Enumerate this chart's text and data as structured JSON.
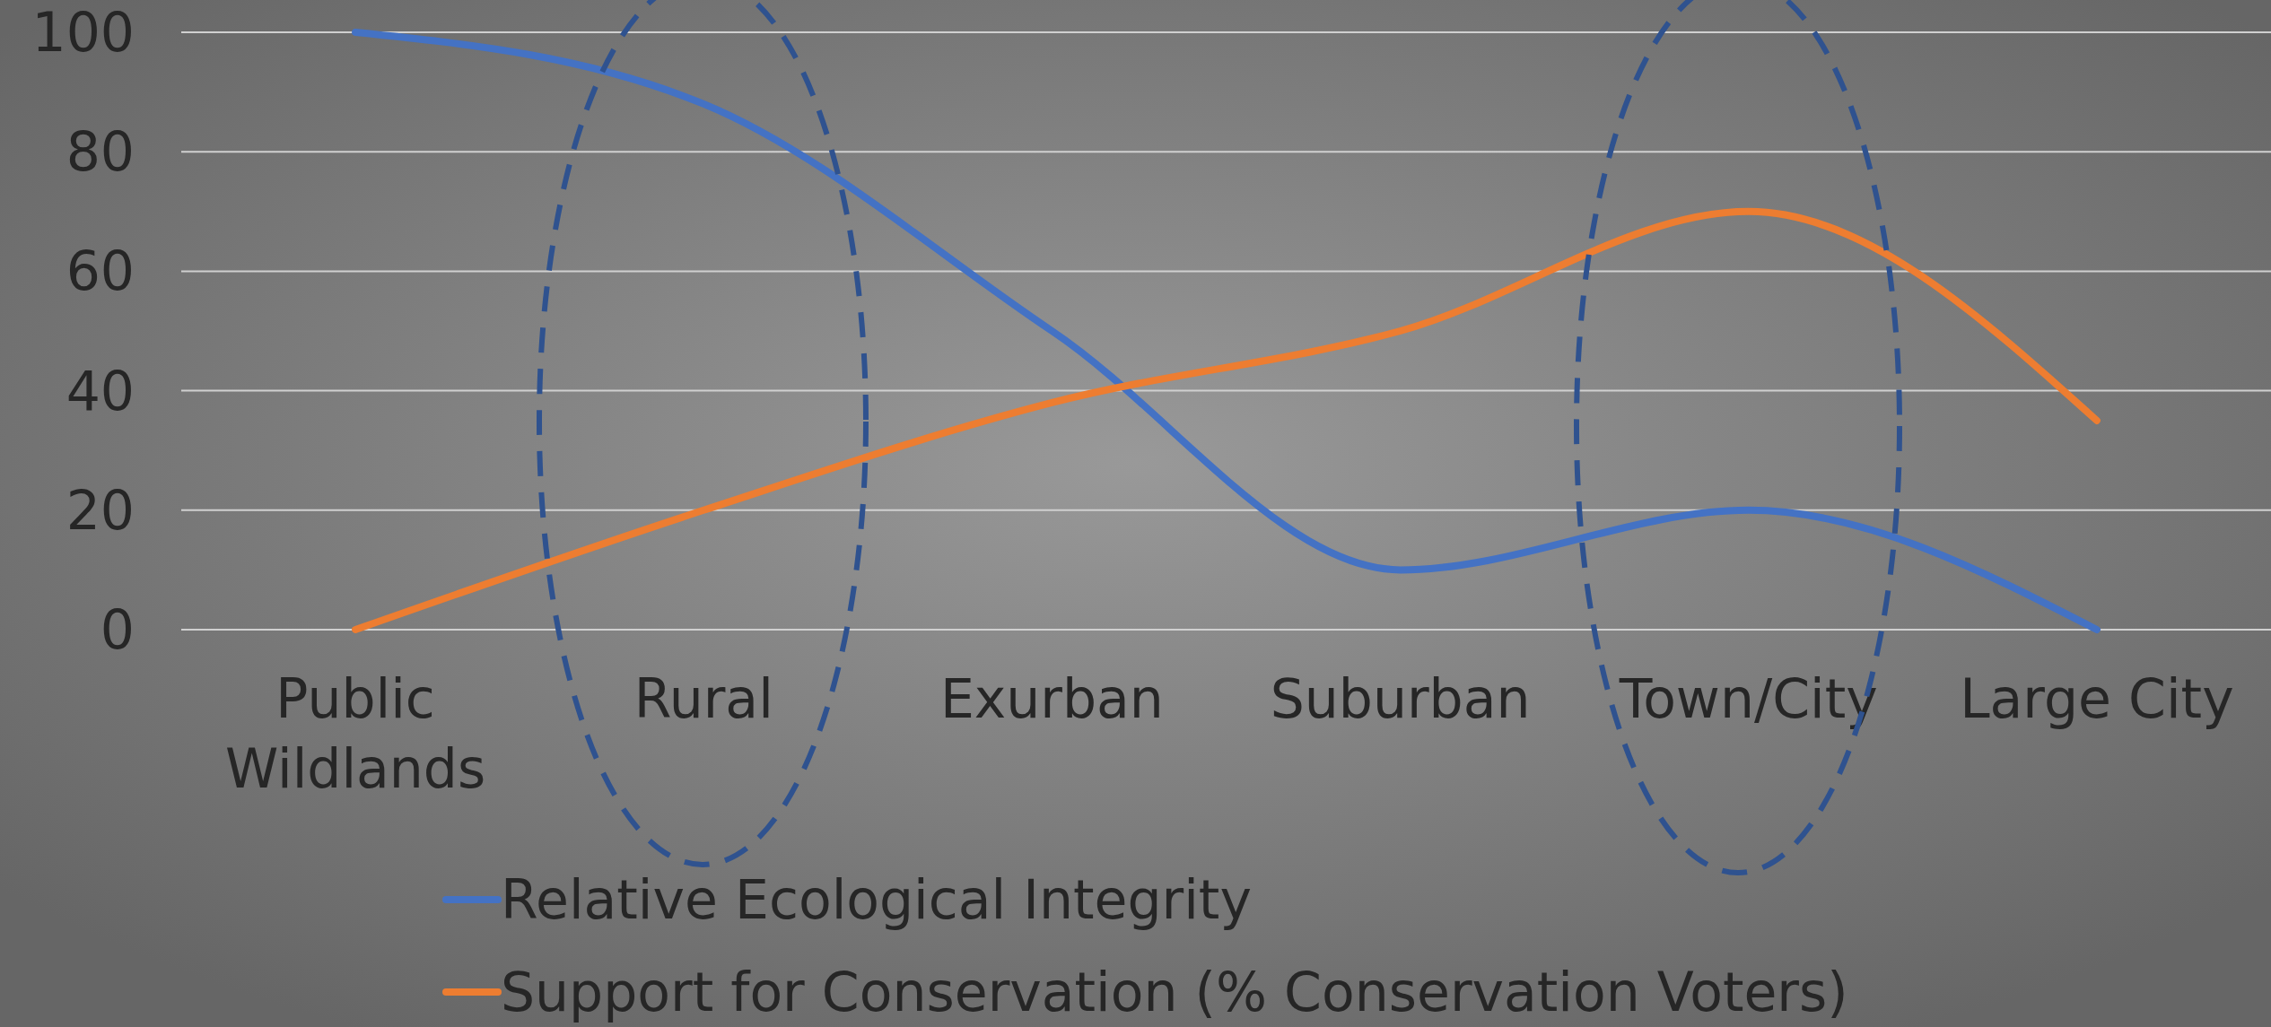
{
  "chart_data": {
    "type": "line",
    "categories": [
      "Public Wildlands",
      "Rural",
      "Exurban",
      "Suburban",
      "Town/City",
      "Large City"
    ],
    "series": [
      {
        "name": "Relative Ecological Integrity",
        "color": "#4472c4",
        "values": [
          100,
          88,
          50,
          10,
          20,
          0
        ]
      },
      {
        "name": "Support for Conservation (% Conservation Voters)",
        "color": "#ed7d31",
        "values": [
          0,
          20,
          38,
          50,
          70,
          35
        ]
      }
    ],
    "ylim": [
      0,
      100
    ],
    "yticks": [
      0,
      20,
      40,
      60,
      80,
      100
    ],
    "grid": "y",
    "legend": "bottom",
    "marker": "none",
    "line_style": "solid"
  }
}
